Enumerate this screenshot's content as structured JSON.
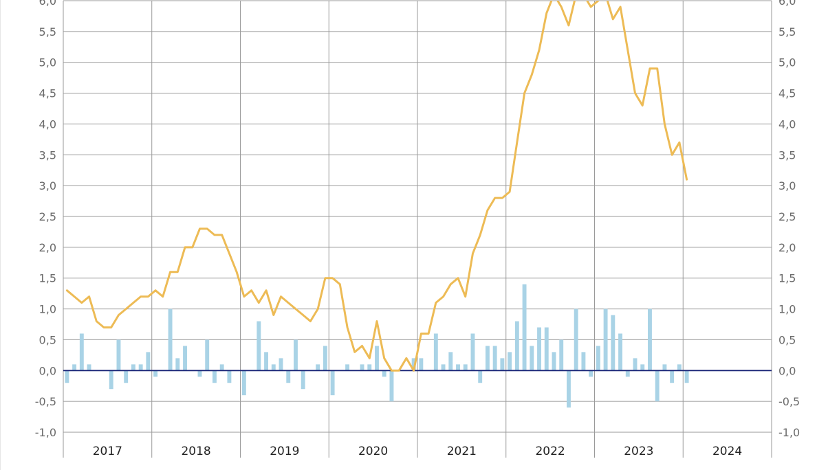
{
  "chart_data": {
    "type": "bar+line",
    "title": "",
    "xlabel": "",
    "ylabel": "",
    "ylim": [
      -1.0,
      6.0
    ],
    "yticks": [
      "-1,0",
      "-0,5",
      "0,0",
      "0,5",
      "1,0",
      "1,5",
      "2,0",
      "2,5",
      "3,0",
      "3,5",
      "4,0",
      "4,5",
      "5,0",
      "5,5",
      "6,0"
    ],
    "year_labels": [
      "2017",
      "2018",
      "2019",
      "2020",
      "2021",
      "2022",
      "2023",
      "2024"
    ],
    "grid": true,
    "months": [
      "2017-01",
      "2017-02",
      "2017-03",
      "2017-04",
      "2017-05",
      "2017-06",
      "2017-07",
      "2017-08",
      "2017-09",
      "2017-10",
      "2017-11",
      "2017-12",
      "2018-01",
      "2018-02",
      "2018-03",
      "2018-04",
      "2018-05",
      "2018-06",
      "2018-07",
      "2018-08",
      "2018-09",
      "2018-10",
      "2018-11",
      "2018-12",
      "2019-01",
      "2019-02",
      "2019-03",
      "2019-04",
      "2019-05",
      "2019-06",
      "2019-07",
      "2019-08",
      "2019-09",
      "2019-10",
      "2019-11",
      "2019-12",
      "2020-01",
      "2020-02",
      "2020-03",
      "2020-04",
      "2020-05",
      "2020-06",
      "2020-07",
      "2020-08",
      "2020-09",
      "2020-10",
      "2020-11",
      "2020-12",
      "2021-01",
      "2021-02",
      "2021-03",
      "2021-04",
      "2021-05",
      "2021-06",
      "2021-07",
      "2021-08",
      "2021-09",
      "2021-10",
      "2021-11",
      "2021-12",
      "2022-01",
      "2022-02",
      "2022-03",
      "2022-04",
      "2022-05",
      "2022-06",
      "2022-07",
      "2022-08",
      "2022-09",
      "2022-10",
      "2022-11",
      "2022-12",
      "2023-01",
      "2023-02",
      "2023-03",
      "2023-04",
      "2023-05",
      "2023-06",
      "2023-07",
      "2023-08",
      "2023-09",
      "2023-10",
      "2023-11",
      "2023-12",
      "2024-01",
      "2024-02",
      "2024-03",
      "2024-04",
      "2024-05",
      "2024-06",
      "2024-07",
      "2024-08",
      "2024-09",
      "2024-10",
      "2024-11",
      "2024-12"
    ],
    "series": [
      {
        "type": "bar",
        "color": "#a9d3e6",
        "values": [
          -0.2,
          0.1,
          0.6,
          0.1,
          0,
          0,
          -0.3,
          0.5,
          -0.2,
          0.1,
          0.1,
          0.3,
          -0.1,
          0,
          1.0,
          0.2,
          0.4,
          0,
          -0.1,
          0.5,
          -0.2,
          0.1,
          -0.2,
          0,
          -0.4,
          0,
          0.8,
          0.3,
          0.1,
          0.2,
          -0.2,
          0.5,
          -0.3,
          0,
          0.1,
          0.4,
          -0.4,
          0,
          0.1,
          0,
          0.1,
          0.1,
          0.4,
          -0.1,
          -0.5,
          0,
          0,
          0.2,
          0.2,
          0,
          0.6,
          0.1,
          0.3,
          0.1,
          0.1,
          0.6,
          -0.2,
          0.4,
          0.4,
          0.2,
          0.3,
          0.8,
          1.4,
          0.4,
          0.7,
          0.7,
          0.3,
          0.5,
          -0.6,
          1.0,
          0.3,
          -0.1,
          0.4,
          1.0,
          0.9,
          0.6,
          -0.1,
          0.2,
          0.1,
          1.0,
          -0.5,
          0.1,
          -0.2,
          0.1,
          -0.2
        ]
      },
      {
        "type": "line",
        "color": "#edbb55",
        "values": [
          1.3,
          1.2,
          1.1,
          1.2,
          0.8,
          0.7,
          0.7,
          0.9,
          1.0,
          1.1,
          1.2,
          1.2,
          1.3,
          1.2,
          1.6,
          1.6,
          2.0,
          2.0,
          2.3,
          2.3,
          2.2,
          2.2,
          1.9,
          1.6,
          1.2,
          1.3,
          1.1,
          1.3,
          0.9,
          1.2,
          1.1,
          1.0,
          0.9,
          0.8,
          1.0,
          1.5,
          1.5,
          1.4,
          0.7,
          0.3,
          0.4,
          0.2,
          0.8,
          0.2,
          0.0,
          0.0,
          0.2,
          0.0,
          0.6,
          0.6,
          1.1,
          1.2,
          1.4,
          1.5,
          1.2,
          1.9,
          2.2,
          2.6,
          2.8,
          2.8,
          2.9,
          3.7,
          4.5,
          4.8,
          5.2,
          5.8,
          6.1,
          5.9,
          5.6,
          6.1,
          6.1,
          5.9,
          6.0,
          6.1,
          5.7,
          5.9,
          5.2,
          4.5,
          4.3,
          4.9,
          4.9,
          4.0,
          3.5,
          3.7,
          3.1
        ]
      }
    ]
  }
}
